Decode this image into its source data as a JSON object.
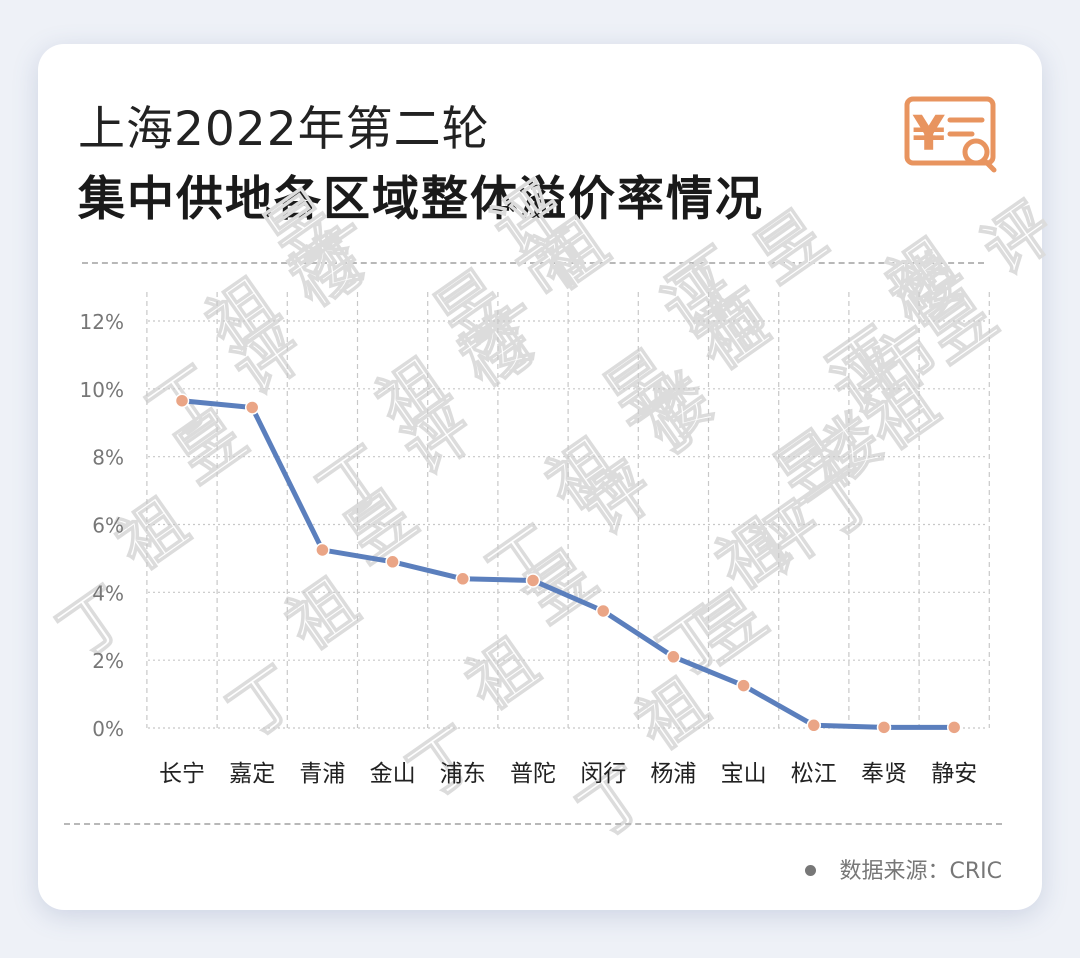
{
  "header": {
    "title_line1": "上海2022年第二轮",
    "title_line2": "集中供地各区域整体溢价率情况"
  },
  "footer": {
    "source": "数据来源：CRIC"
  },
  "watermark": {
    "text": [
      "丁",
      "祖",
      "昱",
      "评",
      "楼",
      "市"
    ]
  },
  "icons": {
    "header_icon": "yen-document-search-icon"
  },
  "colors": {
    "line": "#5b7fbd",
    "marker": "#eaa586",
    "accent": "#e8945f",
    "grid": "#c8c8c8"
  },
  "chart_data": {
    "type": "line",
    "categories": [
      "长宁",
      "嘉定",
      "青浦",
      "金山",
      "浦东",
      "普陀",
      "闵行",
      "杨浦",
      "宝山",
      "松江",
      "奉贤",
      "静安"
    ],
    "series": [
      {
        "values": [
          9.65,
          9.45,
          5.25,
          4.9,
          4.4,
          4.35,
          3.45,
          2.1,
          1.25,
          0.08,
          0.02,
          0.02
        ]
      }
    ],
    "title": "集中供地各区域整体溢价率情况",
    "xlabel": "",
    "ylabel": "",
    "ylim": [
      0,
      12
    ],
    "yticks": [
      0,
      2,
      4,
      6,
      8,
      10,
      12
    ],
    "ytick_labels": [
      "0%",
      "2%",
      "4%",
      "6%",
      "8%",
      "10%",
      "12%"
    ],
    "grid": true,
    "legend": "none"
  }
}
